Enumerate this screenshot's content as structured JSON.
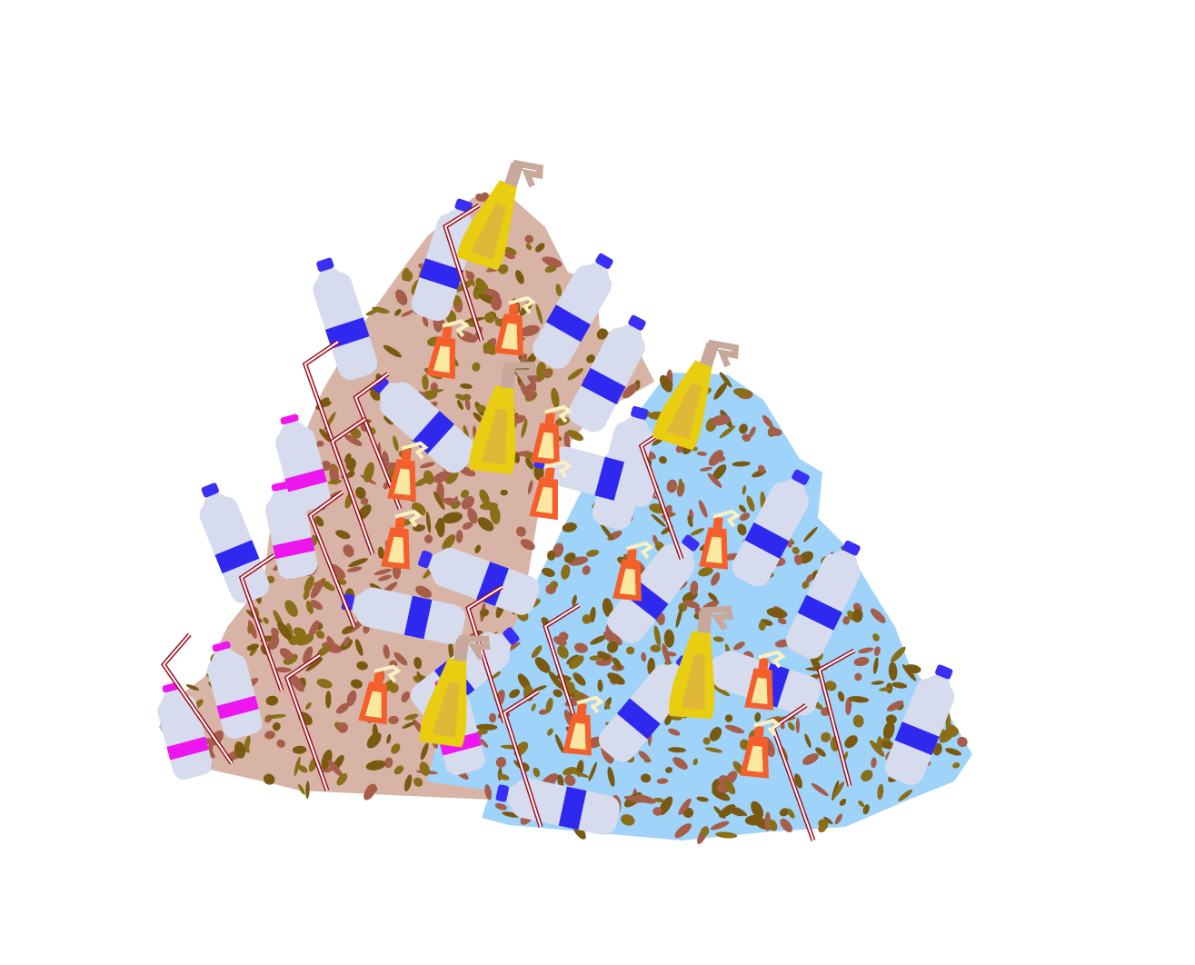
{
  "illustration": {
    "subject": "plastic-waste-heap",
    "colors": {
      "background": "#ffffff",
      "pile_left": "#d8b4a6",
      "pile_right": "#9fd3fa",
      "speckle_dark": "#7a5a10",
      "speckle_brown": "#a65e4a",
      "speckle_olive": "#8a6e18",
      "bottle_body": "#d6dbee",
      "bottle_cap_blue": "#3a2ff5",
      "bottle_label_blue": "#2f29f0",
      "bottle_label_magenta": "#ee16ee",
      "spray_yellow": "#e8cd10",
      "spray_yellow_inner": "#e0b838",
      "spray_orange": "#f45f2c",
      "spray_orange_inner": "#fae7a0",
      "spray_head_tan": "#c7a89a",
      "spray_head_cream": "#fbf1c0",
      "straw_red": "#a0101e",
      "straw_white": "#ffffff"
    },
    "item_kinds": [
      "water-bottle-icon",
      "spray-bottle-icon",
      "drinking-straw-icon"
    ]
  }
}
